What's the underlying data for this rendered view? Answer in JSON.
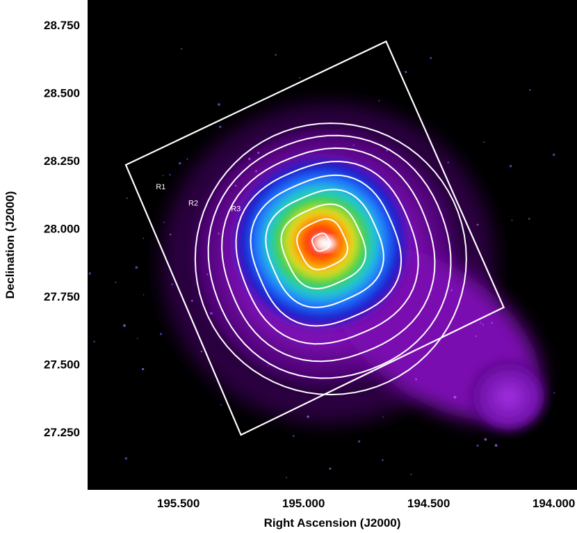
{
  "chart_data": {
    "type": "heatmap",
    "title": "",
    "xlabel": "Right Ascension (J2000)",
    "ylabel": "Declination (J2000)",
    "xlim": [
      195.86,
      193.91
    ],
    "ylim": [
      27.04,
      28.84
    ],
    "x_ticks": [
      {
        "value": 195.5,
        "label": "195.500"
      },
      {
        "value": 195.0,
        "label": "195.000"
      },
      {
        "value": 194.5,
        "label": "194.500"
      },
      {
        "value": 194.0,
        "label": "194.000"
      }
    ],
    "y_ticks": [
      {
        "value": 28.75,
        "label": "28.750"
      },
      {
        "value": 28.5,
        "label": "28.500"
      },
      {
        "value": 28.25,
        "label": "28.250"
      },
      {
        "value": 28.0,
        "label": "28.000"
      },
      {
        "value": 27.75,
        "label": "27.750"
      },
      {
        "value": 27.5,
        "label": "27.500"
      },
      {
        "value": 27.25,
        "label": "27.250"
      }
    ],
    "background_color": "#000000",
    "colormap": [
      "#000000",
      "#3a0050",
      "#7a00a8",
      "#9b1ed8",
      "#1010c8",
      "#2080ff",
      "#20d0d0",
      "#30d040",
      "#e8e020",
      "#ff8000",
      "#ff0000",
      "#ffffff"
    ],
    "emission_peak": {
      "ra": 194.93,
      "dec": 27.95
    },
    "extension": {
      "ra": 194.18,
      "dec": 27.38
    },
    "contour_color": "#ffffff",
    "contour_count": 9,
    "field_box_corners": [
      {
        "ra": 195.71,
        "dec": 28.235
      },
      {
        "ra": 194.67,
        "dec": 28.69
      },
      {
        "ra": 194.2,
        "dec": 27.71
      },
      {
        "ra": 195.25,
        "dec": 27.24
      }
    ],
    "region_labels": [
      {
        "text": "R1",
        "ra": 195.59,
        "dec": 28.145
      },
      {
        "text": "R2",
        "ra": 195.46,
        "dec": 28.085
      },
      {
        "text": "R3",
        "ra": 195.29,
        "dec": 28.065
      }
    ]
  }
}
